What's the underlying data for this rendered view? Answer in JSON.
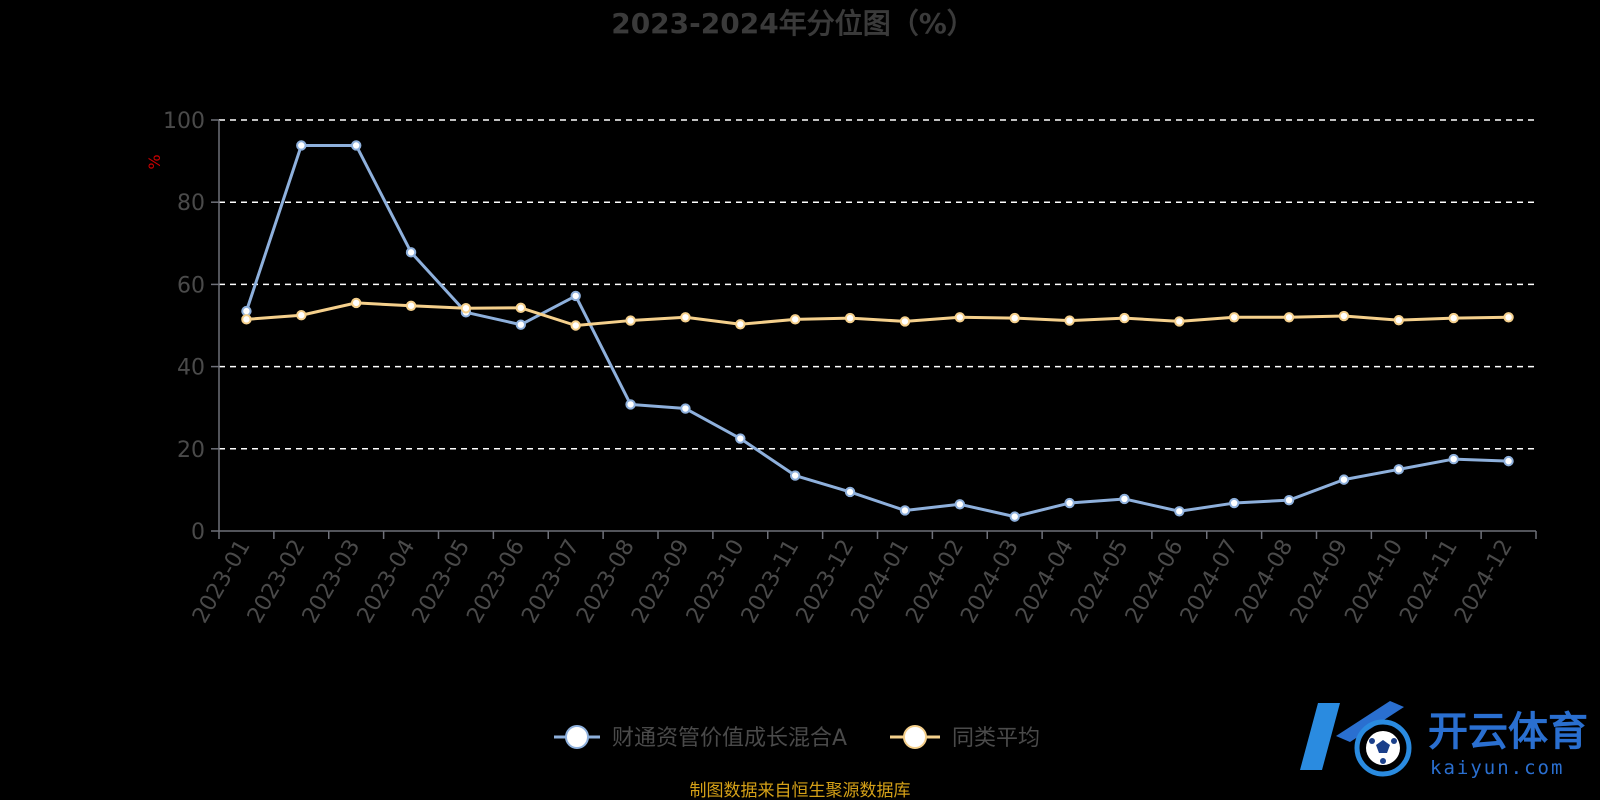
{
  "chart_data": {
    "type": "line",
    "title": "2023-2024年分位图（%）",
    "ylabel": "%",
    "xlabel": "",
    "ylim": [
      0,
      100
    ],
    "yticks": [
      0,
      20,
      40,
      60,
      80,
      100
    ],
    "grid": "horizontal-dashed",
    "legend_position": "bottom-center",
    "categories": [
      "2023-01",
      "2023-02",
      "2023-03",
      "2023-04",
      "2023-05",
      "2023-06",
      "2023-07",
      "2023-08",
      "2023-09",
      "2023-10",
      "2023-11",
      "2023-12",
      "2024-01",
      "2024-02",
      "2024-03",
      "2024-04",
      "2024-05",
      "2024-06",
      "2024-07",
      "2024-08",
      "2024-09",
      "2024-10",
      "2024-11",
      "2024-12"
    ],
    "series": [
      {
        "name": "财通资管价值成长混合A",
        "color": "#8eb0dc",
        "values": [
          53.5,
          93.8,
          93.8,
          67.8,
          53.2,
          50.2,
          57.2,
          30.8,
          29.8,
          22.5,
          13.5,
          9.5,
          5.0,
          6.5,
          3.5,
          6.8,
          7.8,
          4.8,
          6.8,
          7.5,
          12.5,
          15.0,
          17.5,
          17.0
        ]
      },
      {
        "name": "同类平均",
        "color": "#f5d08c",
        "values": [
          51.5,
          52.5,
          55.5,
          54.8,
          54.2,
          54.3,
          50.0,
          51.2,
          52.0,
          50.3,
          51.5,
          51.8,
          51.0,
          52.0,
          51.8,
          51.2,
          51.8,
          51.0,
          52.0,
          52.0,
          52.3,
          51.3,
          51.8,
          52.0
        ]
      }
    ]
  },
  "source_note": "制图数据来自恒生聚源数据库",
  "watermark": {
    "brand": "开云体育",
    "domain": "kaiyun.com",
    "icon": "k-soccer-ball-logo",
    "color": "#2a6fd0"
  },
  "colors": {
    "background": "#000000",
    "axis": "#6e7079",
    "grid": "#ffffff",
    "text": "#4a4a4a",
    "unit_label": "#cc0000",
    "source_note": "#d4a017"
  }
}
